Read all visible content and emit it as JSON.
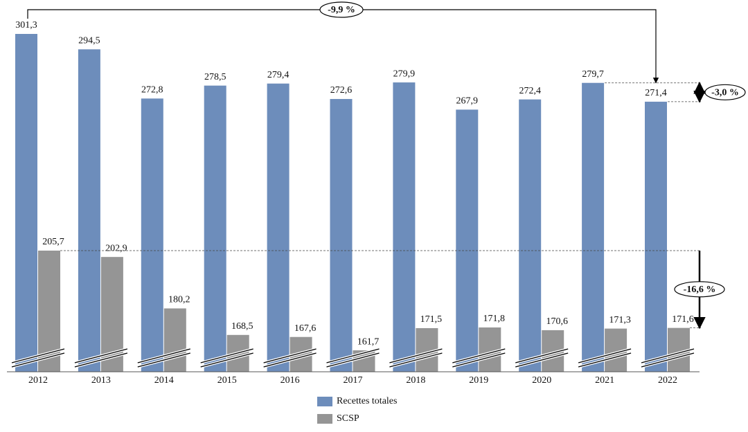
{
  "chart_data": {
    "type": "bar",
    "categories": [
      "2012",
      "2013",
      "2014",
      "2015",
      "2016",
      "2017",
      "2018",
      "2019",
      "2020",
      "2021",
      "2022"
    ],
    "series": [
      {
        "name": "Recettes totales",
        "color": "#6d8dbb",
        "values": [
          301.3,
          294.5,
          272.8,
          278.5,
          279.4,
          272.6,
          279.9,
          267.9,
          272.4,
          279.7,
          271.4
        ],
        "value_labels": [
          "301,3",
          "294,5",
          "272,8",
          "278,5",
          "279,4",
          "272,6",
          "279,9",
          "267,9",
          "272,4",
          "279,7",
          "271,4"
        ]
      },
      {
        "name": "SCSP",
        "color": "#959595",
        "values": [
          205.7,
          202.9,
          180.2,
          168.5,
          167.6,
          161.7,
          171.5,
          171.8,
          170.6,
          171.3,
          171.6
        ],
        "value_labels": [
          "205,7",
          "202,9",
          "180,2",
          "168,5",
          "167,6",
          "161,7",
          "171,5",
          "171,8",
          "170,6",
          "171,3",
          "171,6"
        ]
      }
    ],
    "annotations": [
      "-9,9 %",
      "-3,0 %",
      "-16,6 %"
    ]
  }
}
